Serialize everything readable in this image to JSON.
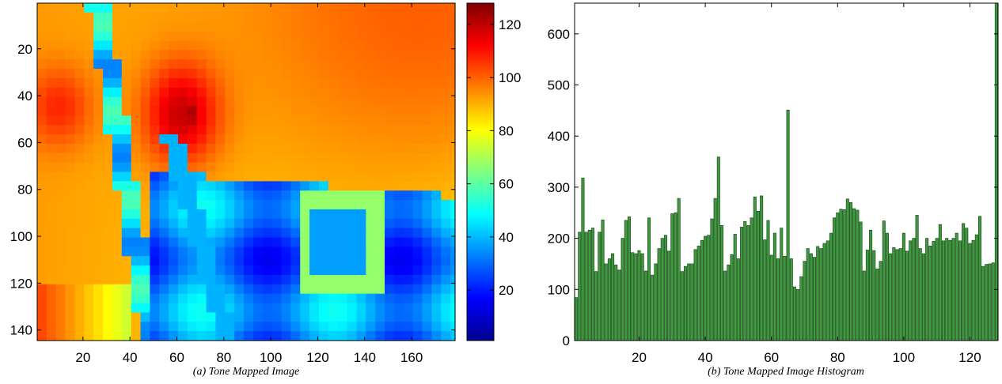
{
  "captions": {
    "left": "(a) Tone Mapped Image",
    "right": "(b) Tone Mapped Image Histogram"
  },
  "colormap": "jet",
  "chart_data": [
    {
      "type": "heatmap",
      "title": "",
      "xlabel": "",
      "ylabel": "",
      "xlim": [
        0.5,
        178.5
      ],
      "ylim": [
        144.5,
        0.5
      ],
      "x_ticks": [
        20,
        40,
        60,
        80,
        100,
        120,
        140,
        160
      ],
      "y_ticks": [
        20,
        40,
        60,
        80,
        100,
        120,
        140
      ],
      "colorbar": {
        "range": [
          1,
          128
        ],
        "ticks": [
          20,
          40,
          60,
          80,
          100,
          120
        ]
      }
    },
    {
      "type": "bar",
      "title": "",
      "xlabel": "",
      "ylabel": "",
      "xlim": [
        0.5,
        128.5
      ],
      "ylim": [
        0,
        660
      ],
      "x_ticks": [
        20,
        40,
        60,
        80,
        100,
        120
      ],
      "y_ticks": [
        0,
        100,
        200,
        300,
        400,
        500,
        600
      ],
      "bar_color": "#3f9a3f",
      "edge_color": "#1d4d1d",
      "bins": [
        1,
        2,
        3,
        4,
        5,
        6,
        7,
        8,
        9,
        10,
        11,
        12,
        13,
        14,
        15,
        16,
        17,
        18,
        19,
        20,
        21,
        22,
        23,
        24,
        25,
        26,
        27,
        28,
        29,
        30,
        31,
        32,
        33,
        34,
        35,
        36,
        37,
        38,
        39,
        40,
        41,
        42,
        43,
        44,
        45,
        46,
        47,
        48,
        49,
        50,
        51,
        52,
        53,
        54,
        55,
        56,
        57,
        58,
        59,
        60,
        61,
        62,
        63,
        64,
        65,
        66,
        67,
        68,
        69,
        70,
        71,
        72,
        73,
        74,
        75,
        76,
        77,
        78,
        79,
        80,
        81,
        82,
        83,
        84,
        85,
        86,
        87,
        88,
        89,
        90,
        91,
        92,
        93,
        94,
        95,
        96,
        97,
        98,
        99,
        100,
        101,
        102,
        103,
        104,
        105,
        106,
        107,
        108,
        109,
        110,
        111,
        112,
        113,
        114,
        115,
        116,
        117,
        118,
        119,
        120,
        121,
        122,
        123,
        124,
        125,
        126,
        127,
        128
      ],
      "values": [
        84,
        212,
        318,
        212,
        216,
        220,
        135,
        212,
        236,
        150,
        160,
        170,
        148,
        138,
        200,
        235,
        242,
        172,
        170,
        176,
        170,
        136,
        240,
        128,
        150,
        180,
        200,
        206,
        175,
        248,
        250,
        278,
        135,
        145,
        150,
        150,
        178,
        185,
        196,
        204,
        206,
        238,
        278,
        359,
        225,
        136,
        148,
        168,
        208,
        160,
        222,
        233,
        225,
        240,
        281,
        253,
        283,
        197,
        235,
        167,
        210,
        160,
        220,
        165,
        451,
        160,
        105,
        100,
        125,
        155,
        180,
        170,
        163,
        184,
        180,
        190,
        195,
        210,
        240,
        250,
        257,
        256,
        277,
        270,
        258,
        255,
        232,
        136,
        177,
        216,
        176,
        140,
        155,
        234,
        210,
        170,
        182,
        178,
        180,
        210,
        175,
        195,
        200,
        245,
        180,
        170,
        200,
        185,
        194,
        200,
        227,
        195,
        200,
        196,
        200,
        210,
        195,
        229,
        220,
        190,
        196,
        207,
        243,
        145,
        149,
        150,
        152,
        660
      ]
    }
  ]
}
